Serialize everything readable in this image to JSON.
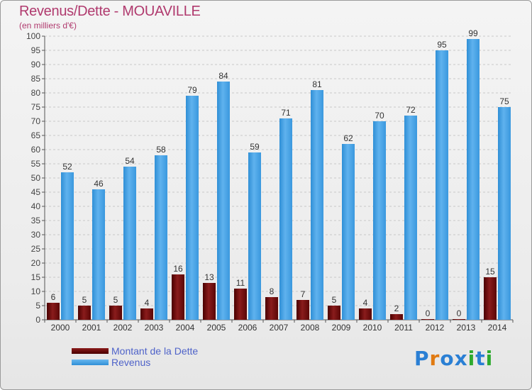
{
  "header": {
    "title": "Revenus/Dette - MOUAVILLE",
    "subtitle": "(en milliers d'€)"
  },
  "legend": {
    "items": [
      {
        "label": "Montant de la Dette",
        "color": "#6b0b0b"
      },
      {
        "label": "Revenus",
        "color": "#3b9ee6"
      }
    ]
  },
  "logo": {
    "letters": [
      "P",
      "r",
      "o",
      "x",
      "i",
      "t",
      "i"
    ],
    "colors": [
      "#2a7fd4",
      "#e07a12",
      "#2a7fd4",
      "#2a7fd4",
      "#2eaa2e",
      "#2a7fd4",
      "#2eaa2e"
    ]
  },
  "chart_data": {
    "type": "bar",
    "categories": [
      "2000",
      "2001",
      "2002",
      "2003",
      "2004",
      "2005",
      "2006",
      "2007",
      "2008",
      "2009",
      "2010",
      "2011",
      "2012",
      "2013",
      "2014"
    ],
    "series": [
      {
        "name": "Montant de la Dette",
        "color": "#6b0b0b",
        "values": [
          6,
          5,
          5,
          4,
          16,
          13,
          11,
          8,
          7,
          5,
          4,
          2,
          0,
          0,
          15
        ]
      },
      {
        "name": "Revenus",
        "color": "#3b9ee6",
        "values": [
          52,
          46,
          54,
          58,
          79,
          84,
          59,
          71,
          81,
          62,
          70,
          72,
          95,
          99,
          75
        ]
      }
    ],
    "title": "Revenus/Dette - MOUAVILLE",
    "subtitle": "(en milliers d'€)",
    "ylim": [
      0,
      100
    ],
    "ytick_step": 5,
    "grid": true,
    "legend_position": "bottom-left"
  }
}
